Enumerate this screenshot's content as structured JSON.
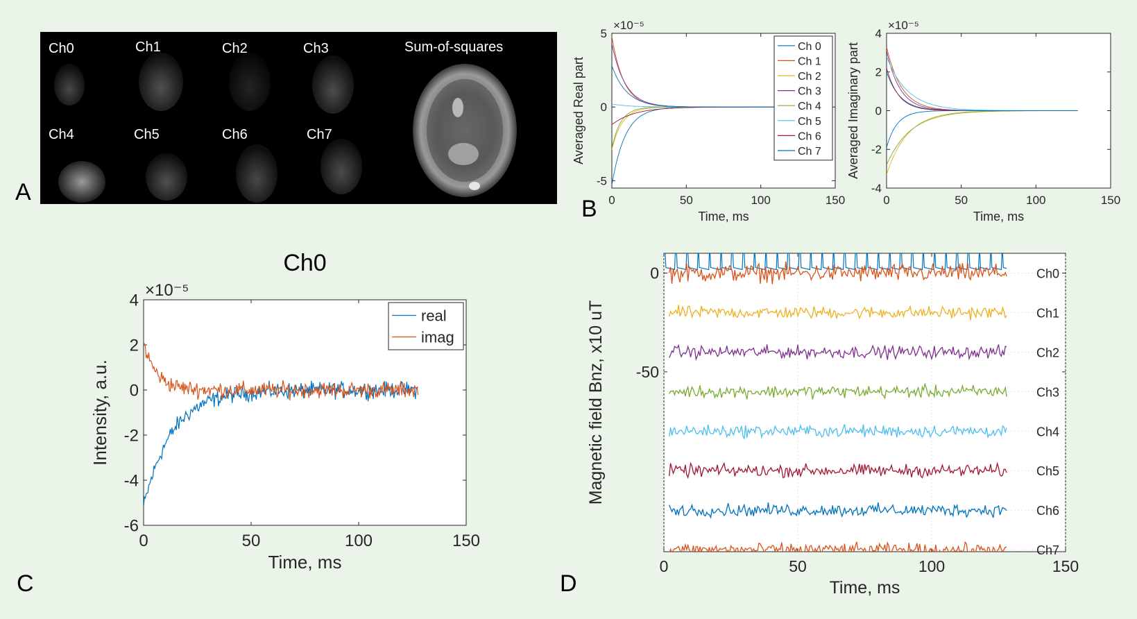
{
  "panel_labels": {
    "a": "A",
    "b": "B",
    "c": "C",
    "d": "D"
  },
  "panel_a": {
    "labels": [
      "Ch0",
      "Ch1",
      "Ch2",
      "Ch3",
      "Ch4",
      "Ch5",
      "Ch6",
      "Ch7"
    ],
    "sos_label": "Sum-of-squares"
  },
  "chart_data": [
    {
      "id": "B-real",
      "type": "line",
      "title": "",
      "xlabel": "Time, ms",
      "ylabel": "Averaged Real part",
      "exponent_label": "×10⁻⁵",
      "xlim": [
        0,
        150
      ],
      "ylim": [
        -5.5,
        5
      ],
      "xticks": [
        0,
        50,
        100,
        150
      ],
      "yticks": [
        -5,
        0,
        5
      ],
      "grid": false,
      "legend": "top-right",
      "series": [
        {
          "name": "Ch 0",
          "color": "#0072bd",
          "start": -5.3,
          "tau": 9
        },
        {
          "name": "Ch 1",
          "color": "#d95319",
          "start": 4.8,
          "tau": 8
        },
        {
          "name": "Ch 2",
          "color": "#edb120",
          "start": -2.9,
          "tau": 7
        },
        {
          "name": "Ch 3",
          "color": "#7e2f8e",
          "start": 4.3,
          "tau": 9
        },
        {
          "name": "Ch 4",
          "color": "#77ac30",
          "start": -2.8,
          "tau": 6
        },
        {
          "name": "Ch 5",
          "color": "#4dbeee",
          "start": 0.2,
          "tau": 12
        },
        {
          "name": "Ch 6",
          "color": "#a2142f",
          "start": -1.2,
          "tau": 15
        },
        {
          "name": "Ch 7",
          "color": "#0072bd",
          "start": 2.8,
          "tau": 10
        }
      ]
    },
    {
      "id": "B-imag",
      "type": "line",
      "title": "",
      "xlabel": "Time, ms",
      "ylabel": "Averaged Imaginary part",
      "exponent_label": "×10⁻⁵",
      "xlim": [
        0,
        150
      ],
      "ylim": [
        -4,
        4
      ],
      "xticks": [
        0,
        50,
        100,
        150
      ],
      "yticks": [
        -4,
        -2,
        0,
        2,
        4
      ],
      "grid": false,
      "legend": "none",
      "series": [
        {
          "name": "Ch 0",
          "color": "#0072bd",
          "start": 2.0,
          "tau": 9
        },
        {
          "name": "Ch 1",
          "color": "#d95319",
          "start": 3.3,
          "tau": 10
        },
        {
          "name": "Ch 2",
          "color": "#edb120",
          "start": -3.3,
          "tau": 14
        },
        {
          "name": "Ch 3",
          "color": "#7e2f8e",
          "start": 3.1,
          "tau": 9
        },
        {
          "name": "Ch 4",
          "color": "#77ac30",
          "start": -2.8,
          "tau": 16
        },
        {
          "name": "Ch 5",
          "color": "#4dbeee",
          "start": 2.8,
          "tau": 14
        },
        {
          "name": "Ch 6",
          "color": "#a2142f",
          "start": 2.2,
          "tau": 8
        },
        {
          "name": "Ch 7",
          "color": "#0072bd",
          "start": -1.9,
          "tau": 7
        }
      ]
    },
    {
      "id": "C",
      "type": "line",
      "title": "Ch0",
      "xlabel": "Time, ms",
      "ylabel": "Intensity, a.u.",
      "exponent_label": "×10⁻⁵",
      "xlim": [
        0,
        150
      ],
      "ylim": [
        -6,
        4
      ],
      "xticks": [
        0,
        50,
        100,
        150
      ],
      "yticks": [
        -6,
        -4,
        -2,
        0,
        2,
        4
      ],
      "grid": false,
      "legend": "top-right",
      "series": [
        {
          "name": "real",
          "color": "#0072bd",
          "start": -5.2,
          "tau": 13
        },
        {
          "name": "imag",
          "color": "#d95319",
          "start": 2.1,
          "tau": 6
        }
      ]
    },
    {
      "id": "D",
      "type": "line",
      "title": "",
      "xlabel": "Time, ms",
      "ylabel": "Magnetic field Bnz, x10 uT",
      "xlim": [
        0,
        150
      ],
      "ylim": [
        -141,
        10
      ],
      "xticks": [
        0,
        50,
        100,
        150
      ],
      "yticks": [
        0,
        -50
      ],
      "grid": true,
      "legend": "right",
      "series": [
        {
          "name": "Ch0",
          "color": "#d95319",
          "offset": 0
        },
        {
          "name": "Ch1",
          "color": "#edb120",
          "offset": -20
        },
        {
          "name": "Ch2",
          "color": "#7e2f8e",
          "offset": -40
        },
        {
          "name": "Ch3",
          "color": "#77ac30",
          "offset": -60
        },
        {
          "name": "Ch4",
          "color": "#4dbeee",
          "offset": -80
        },
        {
          "name": "Ch5",
          "color": "#a2142f",
          "offset": -100
        },
        {
          "name": "Ch6",
          "color": "#0072bd",
          "offset": -120
        },
        {
          "name": "Ch7",
          "color": "#d95319",
          "offset": -140
        }
      ]
    }
  ]
}
